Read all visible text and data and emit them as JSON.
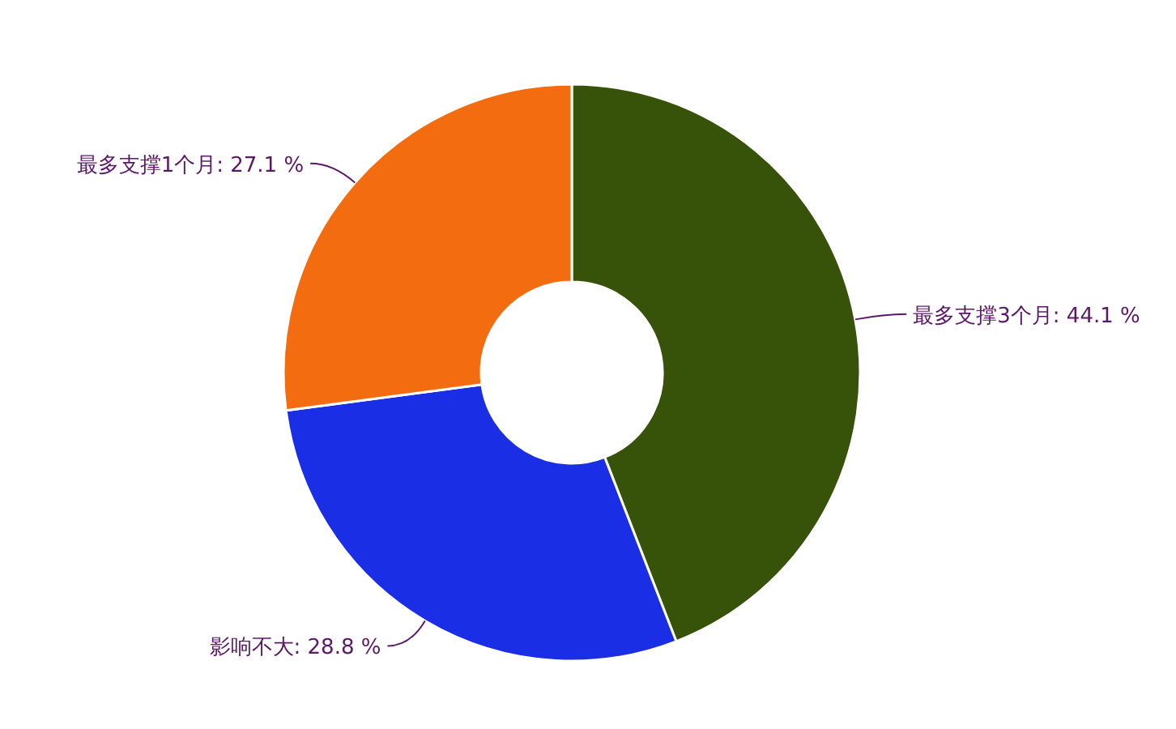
{
  "chart_data": {
    "type": "donut",
    "categories": [
      "最多支撑3个月",
      "影响不大",
      "最多支撑1个月"
    ],
    "values": [
      44.1,
      28.8,
      27.1
    ],
    "value_labels": [
      "44.1 %",
      "28.8 %",
      "27.1 %"
    ],
    "colors": [
      "#375209",
      "#1a2ee6",
      "#f46c10"
    ]
  }
}
